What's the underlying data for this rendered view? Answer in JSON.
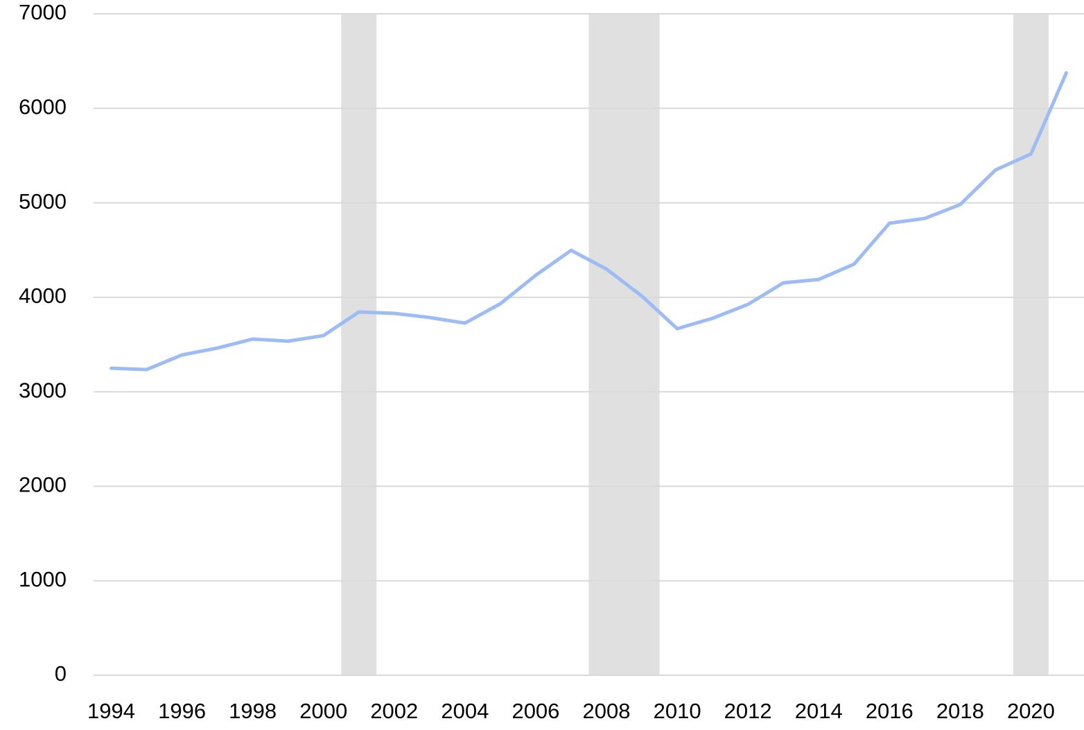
{
  "chart_data": {
    "type": "line",
    "x": [
      1994,
      1995,
      1996,
      1997,
      1998,
      1999,
      2000,
      2001,
      2002,
      2003,
      2004,
      2005,
      2006,
      2007,
      2008,
      2009,
      2010,
      2011,
      2012,
      2013,
      2014,
      2015,
      2016,
      2017,
      2018,
      2019,
      2020,
      2021
    ],
    "series": [
      {
        "color": "#9dbcf5",
        "values": [
          3250,
          3235,
          3390,
          3463,
          3558,
          3536,
          3595,
          3845,
          3830,
          3786,
          3727,
          3932,
          4233,
          4497,
          4299,
          4013,
          3668,
          3778,
          3925,
          4153,
          4189,
          4351,
          4784,
          4835,
          4982,
          5348,
          5517,
          6376
        ]
      }
    ],
    "shaded_ranges": [
      [
        2000.5,
        2001.5
      ],
      [
        2007.5,
        2009.5
      ],
      [
        2019.5,
        2020.5
      ]
    ],
    "shade_color": "#e0e0e0",
    "xlim": [
      1993.5,
      2021.5
    ],
    "xticks": [
      1994,
      1996,
      1998,
      2000,
      2002,
      2004,
      2006,
      2008,
      2010,
      2012,
      2014,
      2016,
      2018,
      2020
    ],
    "ylim": [
      0,
      7000
    ],
    "yticks": [
      0,
      1000,
      2000,
      3000,
      4000,
      5000,
      6000,
      7000
    ],
    "grid": true
  }
}
